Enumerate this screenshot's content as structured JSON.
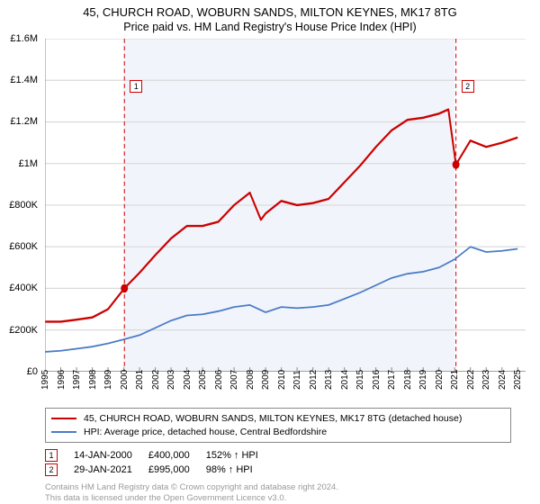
{
  "title": {
    "line1": "45, CHURCH ROAD, WOBURN SANDS, MILTON KEYNES, MK17 8TG",
    "line2": "Price paid vs. HM Land Registry's House Price Index (HPI)"
  },
  "chart": {
    "type": "line",
    "background_color": "#ffffff",
    "shade_band": {
      "from_year": 2000,
      "to_year": 2021,
      "color": "#f1f4fb"
    },
    "ylim": [
      0,
      1600000
    ],
    "ytick_step": 200000,
    "yticks": [
      "£0",
      "£200K",
      "£400K",
      "£600K",
      "£800K",
      "£1M",
      "£1.2M",
      "£1.4M",
      "£1.6M"
    ],
    "xlim": [
      1995,
      2025.5
    ],
    "xticks": [
      1995,
      1996,
      1997,
      1998,
      1999,
      2000,
      2001,
      2002,
      2003,
      2004,
      2005,
      2006,
      2007,
      2008,
      2009,
      2010,
      2011,
      2012,
      2013,
      2014,
      2015,
      2016,
      2017,
      2018,
      2019,
      2020,
      2021,
      2022,
      2023,
      2024,
      2025
    ],
    "event_lines": [
      {
        "year": 2000.04,
        "label": "1",
        "color": "#cc0000",
        "dash": "4,3",
        "label_y": 1400000
      },
      {
        "year": 2021.08,
        "label": "2",
        "color": "#cc0000",
        "dash": "4,3",
        "label_y": 1400000
      }
    ],
    "series": [
      {
        "name": "price_paid",
        "label": "45, CHURCH ROAD, WOBURN SANDS, MILTON KEYNES, MK17 8TG (detached house)",
        "color": "#cc0000",
        "width": 2,
        "points": [
          [
            1995,
            240000
          ],
          [
            1996,
            240000
          ],
          [
            1997,
            250000
          ],
          [
            1998,
            260000
          ],
          [
            1999,
            300000
          ],
          [
            2000.04,
            400000
          ],
          [
            2001,
            475000
          ],
          [
            2002,
            560000
          ],
          [
            2003,
            640000
          ],
          [
            2004,
            700000
          ],
          [
            2005,
            700000
          ],
          [
            2006,
            720000
          ],
          [
            2007,
            800000
          ],
          [
            2008,
            860000
          ],
          [
            2008.7,
            730000
          ],
          [
            2009,
            760000
          ],
          [
            2010,
            820000
          ],
          [
            2011,
            800000
          ],
          [
            2012,
            810000
          ],
          [
            2013,
            830000
          ],
          [
            2014,
            910000
          ],
          [
            2015,
            990000
          ],
          [
            2016,
            1080000
          ],
          [
            2017,
            1160000
          ],
          [
            2018,
            1210000
          ],
          [
            2019,
            1220000
          ],
          [
            2020,
            1240000
          ],
          [
            2020.6,
            1260000
          ],
          [
            2021.08,
            995000
          ],
          [
            2022,
            1110000
          ],
          [
            2023,
            1080000
          ],
          [
            2024,
            1100000
          ],
          [
            2025,
            1125000
          ]
        ],
        "markers": [
          {
            "x": 2000.04,
            "y": 400000
          },
          {
            "x": 2021.08,
            "y": 995000
          }
        ]
      },
      {
        "name": "hpi",
        "label": "HPI: Average price, detached house, Central Bedfordshire",
        "color": "#4a7bc7",
        "width": 1.5,
        "points": [
          [
            1995,
            95000
          ],
          [
            1996,
            100000
          ],
          [
            1997,
            110000
          ],
          [
            1998,
            120000
          ],
          [
            1999,
            135000
          ],
          [
            2000,
            155000
          ],
          [
            2001,
            175000
          ],
          [
            2002,
            210000
          ],
          [
            2003,
            245000
          ],
          [
            2004,
            270000
          ],
          [
            2005,
            275000
          ],
          [
            2006,
            290000
          ],
          [
            2007,
            310000
          ],
          [
            2008,
            320000
          ],
          [
            2009,
            285000
          ],
          [
            2010,
            310000
          ],
          [
            2011,
            305000
          ],
          [
            2012,
            310000
          ],
          [
            2013,
            320000
          ],
          [
            2014,
            350000
          ],
          [
            2015,
            380000
          ],
          [
            2016,
            415000
          ],
          [
            2017,
            450000
          ],
          [
            2018,
            470000
          ],
          [
            2019,
            480000
          ],
          [
            2020,
            500000
          ],
          [
            2021,
            540000
          ],
          [
            2022,
            600000
          ],
          [
            2023,
            575000
          ],
          [
            2024,
            580000
          ],
          [
            2025,
            590000
          ]
        ]
      }
    ]
  },
  "legend": {
    "items": [
      {
        "color": "#cc0000",
        "label": "45, CHURCH ROAD, WOBURN SANDS, MILTON KEYNES, MK17 8TG (detached house)"
      },
      {
        "color": "#4a7bc7",
        "label": "HPI: Average price, detached house, Central Bedfordshire"
      }
    ]
  },
  "events": [
    {
      "label": "1",
      "date": "14-JAN-2000",
      "price": "£400,000",
      "delta": "152% ↑ HPI",
      "border_color": "#cc0000"
    },
    {
      "label": "2",
      "date": "29-JAN-2021",
      "price": "£995,000",
      "delta": "98% ↑ HPI",
      "border_color": "#cc0000"
    }
  ],
  "footer": {
    "line1": "Contains HM Land Registry data © Crown copyright and database right 2024.",
    "line2": "This data is licensed under the Open Government Licence v3.0."
  }
}
